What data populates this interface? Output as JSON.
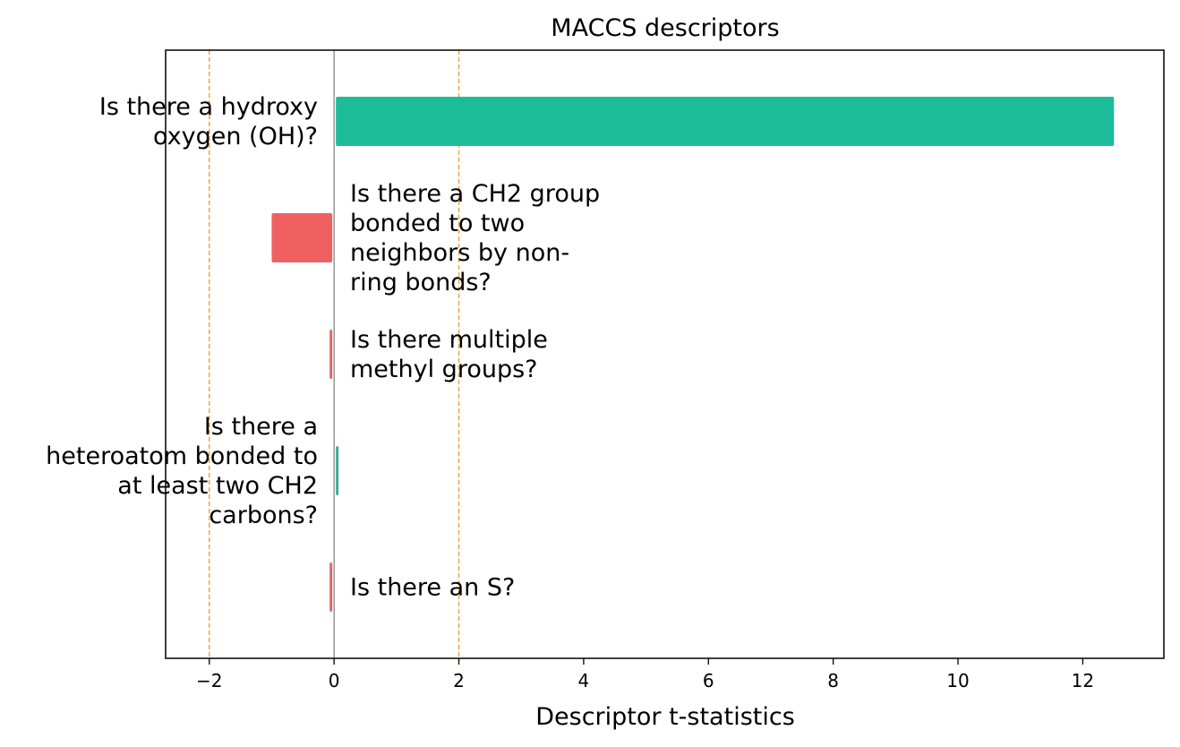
{
  "chart_data": {
    "type": "bar",
    "orientation": "horizontal",
    "title": "MACCS descriptors",
    "xlabel": "Descriptor t-statistics",
    "ylabel": "",
    "xlim": [
      -2.7,
      13.3
    ],
    "xticks": [
      -2,
      0,
      2,
      4,
      6,
      8,
      10,
      12
    ],
    "xtick_labels": [
      "−2",
      "0",
      "2",
      "4",
      "6",
      "8",
      "10",
      "12"
    ],
    "threshold_lines": [
      -2,
      2
    ],
    "threshold_color": "#f5a33c",
    "zero_line_color": "#888888",
    "grid": false,
    "bars": [
      {
        "label_lines": [
          "Is there a hydroxy",
          "oxygen (OH)?"
        ],
        "value": 12.5,
        "color": "#1dbd9b",
        "label_side": "left"
      },
      {
        "label_lines": [
          "Is there a CH2 group",
          "bonded to two",
          "neighbors by non-",
          "ring bonds?"
        ],
        "value": -1.0,
        "color": "#f06060",
        "label_side": "right"
      },
      {
        "label_lines": [
          "Is there multiple",
          "methyl groups?"
        ],
        "value": -0.05,
        "color": "#e06666",
        "label_side": "right"
      },
      {
        "label_lines": [
          "Is there a",
          "heteroatom bonded to",
          "at least two CH2",
          "carbons?"
        ],
        "value": 0.05,
        "color": "#3aae96",
        "label_side": "left"
      },
      {
        "label_lines": [
          "Is there an S?"
        ],
        "value": -0.05,
        "color": "#e06666",
        "label_side": "right"
      }
    ]
  }
}
